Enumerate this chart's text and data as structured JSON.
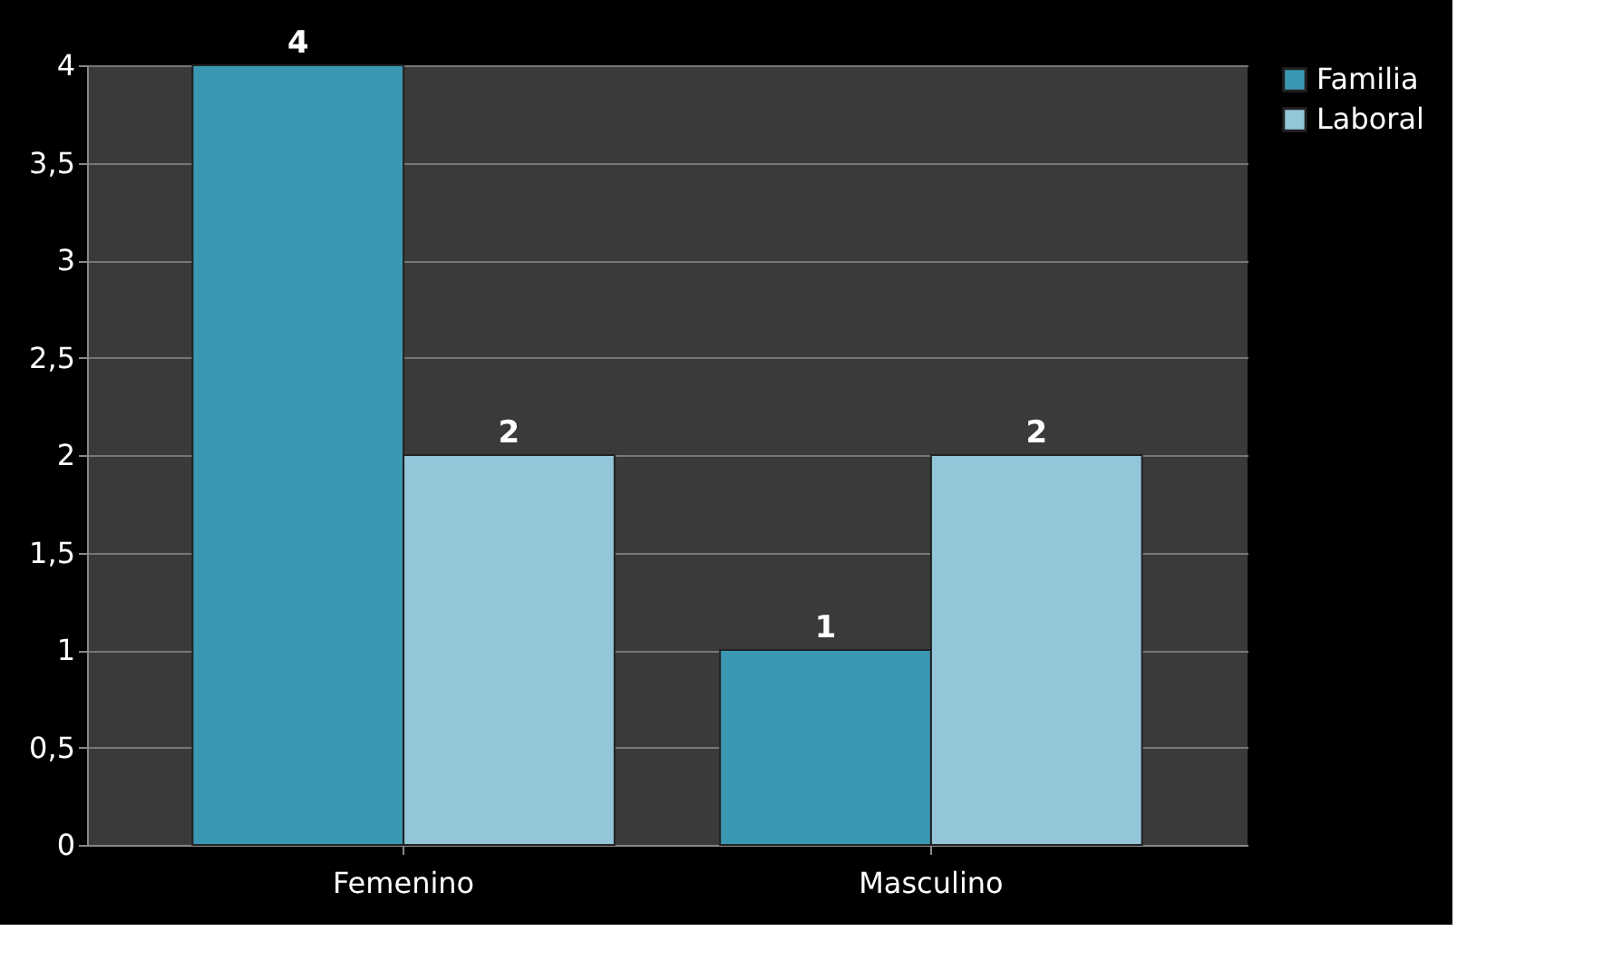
{
  "chart_data": {
    "type": "bar",
    "categories": [
      "Femenino",
      "Masculino"
    ],
    "series": [
      {
        "name": "Familia",
        "color": "#3b98b2",
        "values": [
          4,
          1
        ]
      },
      {
        "name": "Laboral",
        "color": "#93c6d9",
        "values": [
          2,
          2
        ]
      }
    ],
    "ylim": [
      0,
      4
    ],
    "yticks": [
      0,
      {
        "value": 0.5,
        "label": "0,5"
      },
      1,
      {
        "value": 1.5,
        "label": "1,5"
      },
      2,
      {
        "value": 2.5,
        "label": "2,5"
      },
      3,
      {
        "value": 3.5,
        "label": "3,5"
      },
      4
    ],
    "grid": "y",
    "legend": "right",
    "data_labels": true
  }
}
